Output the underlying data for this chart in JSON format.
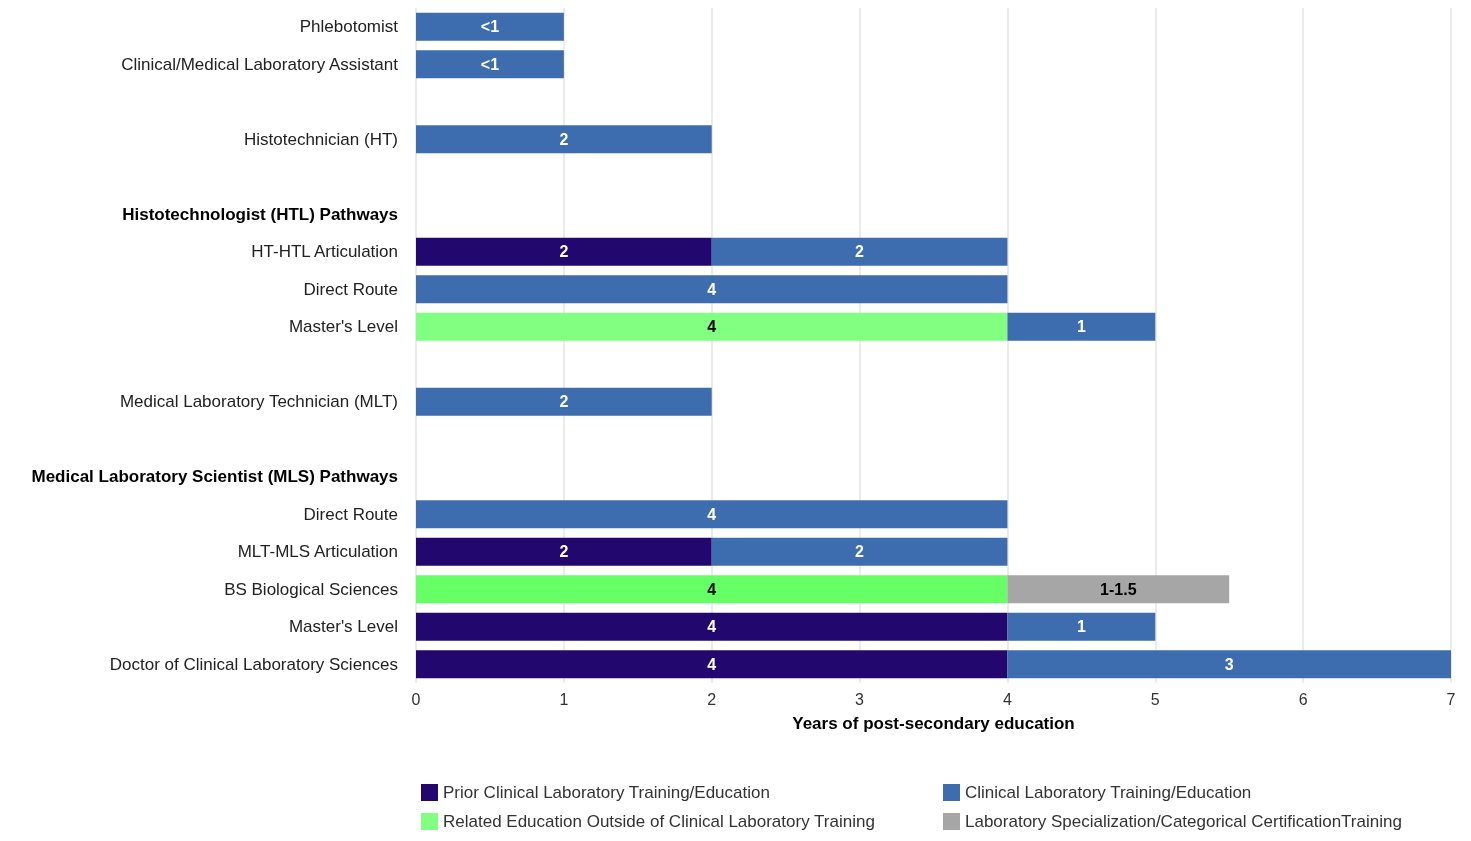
{
  "chart_data": {
    "type": "bar",
    "orientation": "horizontal",
    "stacked": true,
    "xlabel": "Years of post-secondary education",
    "categories": [
      "Phlebotomist",
      "Clinical/Medical Laboratory Assistant",
      null,
      "Histotechnician (HT)",
      null,
      "Histotechnologist (HTL) Pathways",
      "HT-HTL Articulation",
      "Direct Route",
      "Master's Level",
      null,
      "Medical Laboratory Technician (MLT)",
      null,
      "Medical Laboratory Scientist (MLS) Pathways",
      "Direct Route",
      "MLT-MLS Articulation",
      "BS Biological Sciences",
      "Master's Level",
      "Doctor of Clinical Laboratory Sciences"
    ],
    "series": [
      {
        "name": "Prior Clinical Laboratory Training/Education",
        "color": "#22076e",
        "values": [
          null,
          null,
          null,
          null,
          null,
          null,
          2,
          null,
          null,
          null,
          null,
          null,
          null,
          null,
          2,
          null,
          4,
          4
        ],
        "value_labels": [
          null,
          null,
          null,
          null,
          null,
          null,
          "2",
          null,
          null,
          null,
          null,
          null,
          null,
          null,
          "2",
          null,
          "4",
          "4"
        ]
      },
      {
        "name": "Related Education Outside of Clinical Laboratory Training",
        "color": "#80ff80",
        "colors": [
          null,
          null,
          null,
          null,
          null,
          null,
          null,
          null,
          "#80ff80",
          null,
          null,
          null,
          null,
          null,
          null,
          "#66ff66",
          null,
          null
        ],
        "values": [
          null,
          null,
          null,
          null,
          null,
          null,
          null,
          null,
          4,
          null,
          null,
          null,
          null,
          null,
          null,
          4,
          null,
          null
        ],
        "value_labels": [
          null,
          null,
          null,
          null,
          null,
          null,
          null,
          null,
          "4",
          null,
          null,
          null,
          null,
          null,
          null,
          "4",
          null,
          null
        ]
      },
      {
        "name": "Clinical Laboratory Training/Education",
        "color": "#3e6daf",
        "values": [
          1,
          1,
          null,
          2,
          null,
          null,
          2,
          4,
          1,
          null,
          2,
          null,
          null,
          4,
          2,
          null,
          1,
          3
        ],
        "value_labels": [
          "<1",
          "<1",
          null,
          "2",
          null,
          null,
          "2",
          "4",
          "1",
          null,
          "2",
          null,
          null,
          "4",
          "2",
          null,
          "1",
          "3"
        ]
      },
      {
        "name": "Laboratory Specialization/Categorical CertificationTraining",
        "color": "#a6a6a6",
        "values": [
          null,
          null,
          null,
          null,
          null,
          null,
          null,
          null,
          null,
          null,
          null,
          null,
          null,
          null,
          null,
          1.5,
          null,
          null
        ],
        "value_labels": [
          null,
          null,
          null,
          null,
          null,
          null,
          null,
          null,
          null,
          null,
          null,
          null,
          null,
          null,
          null,
          "1-1.5",
          null,
          null
        ]
      }
    ],
    "xlim": [
      0,
      7
    ],
    "xticks": [
      0,
      1,
      2,
      3,
      4,
      5,
      6,
      7
    ],
    "grid": "x",
    "legend": "bottom"
  }
}
